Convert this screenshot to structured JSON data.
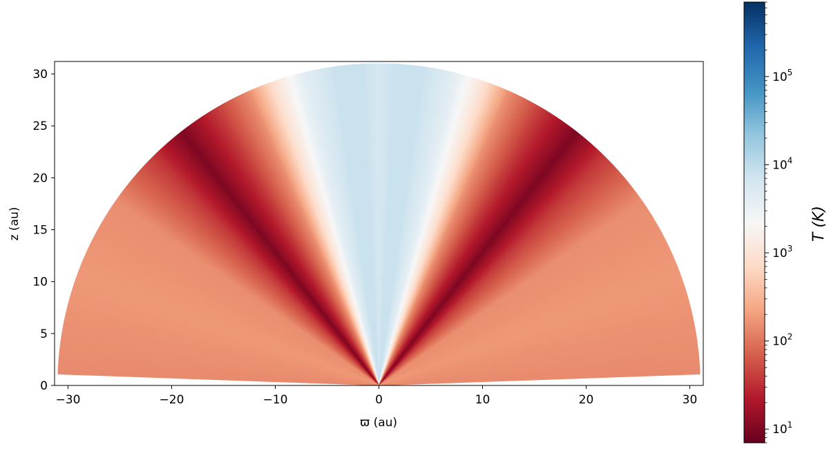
{
  "chart_data": {
    "type": "heatmap",
    "title": "",
    "xlabel": "ϖ (au)",
    "ylabel": "z (au)",
    "xlim": [
      -31.3,
      31.3
    ],
    "ylim": [
      0,
      31.2
    ],
    "grid": false,
    "domain_radius": 31,
    "x_ticks": [
      -30,
      -20,
      -10,
      0,
      10,
      20,
      30
    ],
    "x_tick_labels": [
      "−30",
      "−20",
      "−10",
      "0",
      "10",
      "20",
      "30"
    ],
    "y_ticks": [
      0,
      5,
      10,
      15,
      20,
      25,
      30
    ],
    "y_tick_labels": [
      "0",
      "5",
      "10",
      "15",
      "20",
      "25",
      "30"
    ],
    "colorbar": {
      "label": "T (K)",
      "scale": "log",
      "colormap": "RdBu",
      "range": [
        7,
        700000
      ],
      "ticks": [
        10,
        100,
        1000,
        10000,
        100000
      ],
      "tick_mantissa": "10",
      "tick_exponents": [
        "1",
        "2",
        "3",
        "4",
        "5"
      ],
      "colors": [
        "#67001f",
        "#b2182b",
        "#d6604d",
        "#f4a582",
        "#fddbc7",
        "#f7f7f7",
        "#d1e5f0",
        "#92c5de",
        "#4393c3",
        "#2166ac",
        "#053061"
      ]
    },
    "temperature_by_polar_angle_deg": {
      "angle_deg": [
        0,
        3,
        8,
        14,
        19,
        24,
        31,
        38,
        45,
        55,
        70,
        88
      ],
      "T_K": [
        6000,
        8000,
        8000,
        4000,
        1000,
        150,
        35,
        10,
        40,
        150,
        180,
        140
      ]
    }
  }
}
